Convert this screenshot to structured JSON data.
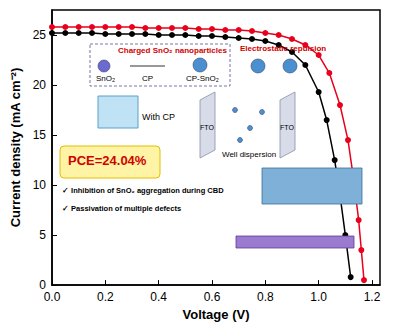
{
  "chart_data": {
    "type": "line",
    "x_label": "Voltage (V)",
    "y_label": "Current density (mA cm⁻²)",
    "xlim": [
      0,
      1.23
    ],
    "xticks": [
      {
        "value": 0,
        "label": "0.0"
      },
      0.2,
      0.4,
      0.6,
      0.8,
      {
        "value": 1,
        "label": "1.0"
      },
      1.2
    ],
    "ylim": [
      0,
      27.5
    ],
    "yticks": [
      0,
      5,
      10,
      15,
      20,
      25
    ],
    "grid": false,
    "series": [
      {
        "color": "#000000",
        "marker": "circle",
        "line_style": "solid",
        "x": [
          0,
          0.05,
          0.1,
          0.15,
          0.2,
          0.25,
          0.3,
          0.35,
          0.4,
          0.45,
          0.5,
          0.55,
          0.6,
          0.65,
          0.7,
          0.75,
          0.8,
          0.85,
          0.9,
          0.95,
          1.0,
          1.03,
          1.06,
          1.08,
          1.1,
          1.12
        ],
        "values": [
          25.2,
          25.2,
          25.2,
          25.2,
          25.1,
          25.1,
          25.1,
          25.1,
          25.0,
          25.0,
          25.0,
          24.9,
          24.9,
          24.8,
          24.7,
          24.6,
          24.4,
          24.0,
          23.3,
          22.0,
          19.3,
          16.5,
          12.5,
          9.0,
          5.0,
          0.8
        ]
      },
      {
        "color": "#e8001c",
        "marker": "circle",
        "line_style": "solid",
        "x": [
          0,
          0.05,
          0.1,
          0.15,
          0.2,
          0.25,
          0.3,
          0.35,
          0.4,
          0.45,
          0.5,
          0.55,
          0.6,
          0.65,
          0.7,
          0.75,
          0.8,
          0.85,
          0.9,
          0.95,
          1.0,
          1.04,
          1.08,
          1.11,
          1.13,
          1.15,
          1.16,
          1.17
        ],
        "values": [
          25.8,
          25.8,
          25.8,
          25.8,
          25.8,
          25.8,
          25.8,
          25.7,
          25.7,
          25.7,
          25.7,
          25.6,
          25.6,
          25.5,
          25.5,
          25.4,
          25.2,
          25.0,
          24.6,
          24.0,
          23.0,
          21.2,
          18.0,
          14.5,
          10.8,
          6.5,
          3.5,
          0.5
        ]
      }
    ],
    "annotations": {
      "inset_title": "Charged SnO₂ nanoparticles",
      "parts": [
        "SnO₂",
        "CP",
        "CP-SnO₂"
      ],
      "repulsion": "Electrostatic repulsion",
      "step": "With CP",
      "electrode": "FTO",
      "dispersion": "Well dispersion",
      "pce": "PCE=24.04%",
      "notes": [
        "✓ Inhibition of SnO₂ aggregation during CBD",
        "✓ Passivation of multiple defects"
      ]
    }
  }
}
